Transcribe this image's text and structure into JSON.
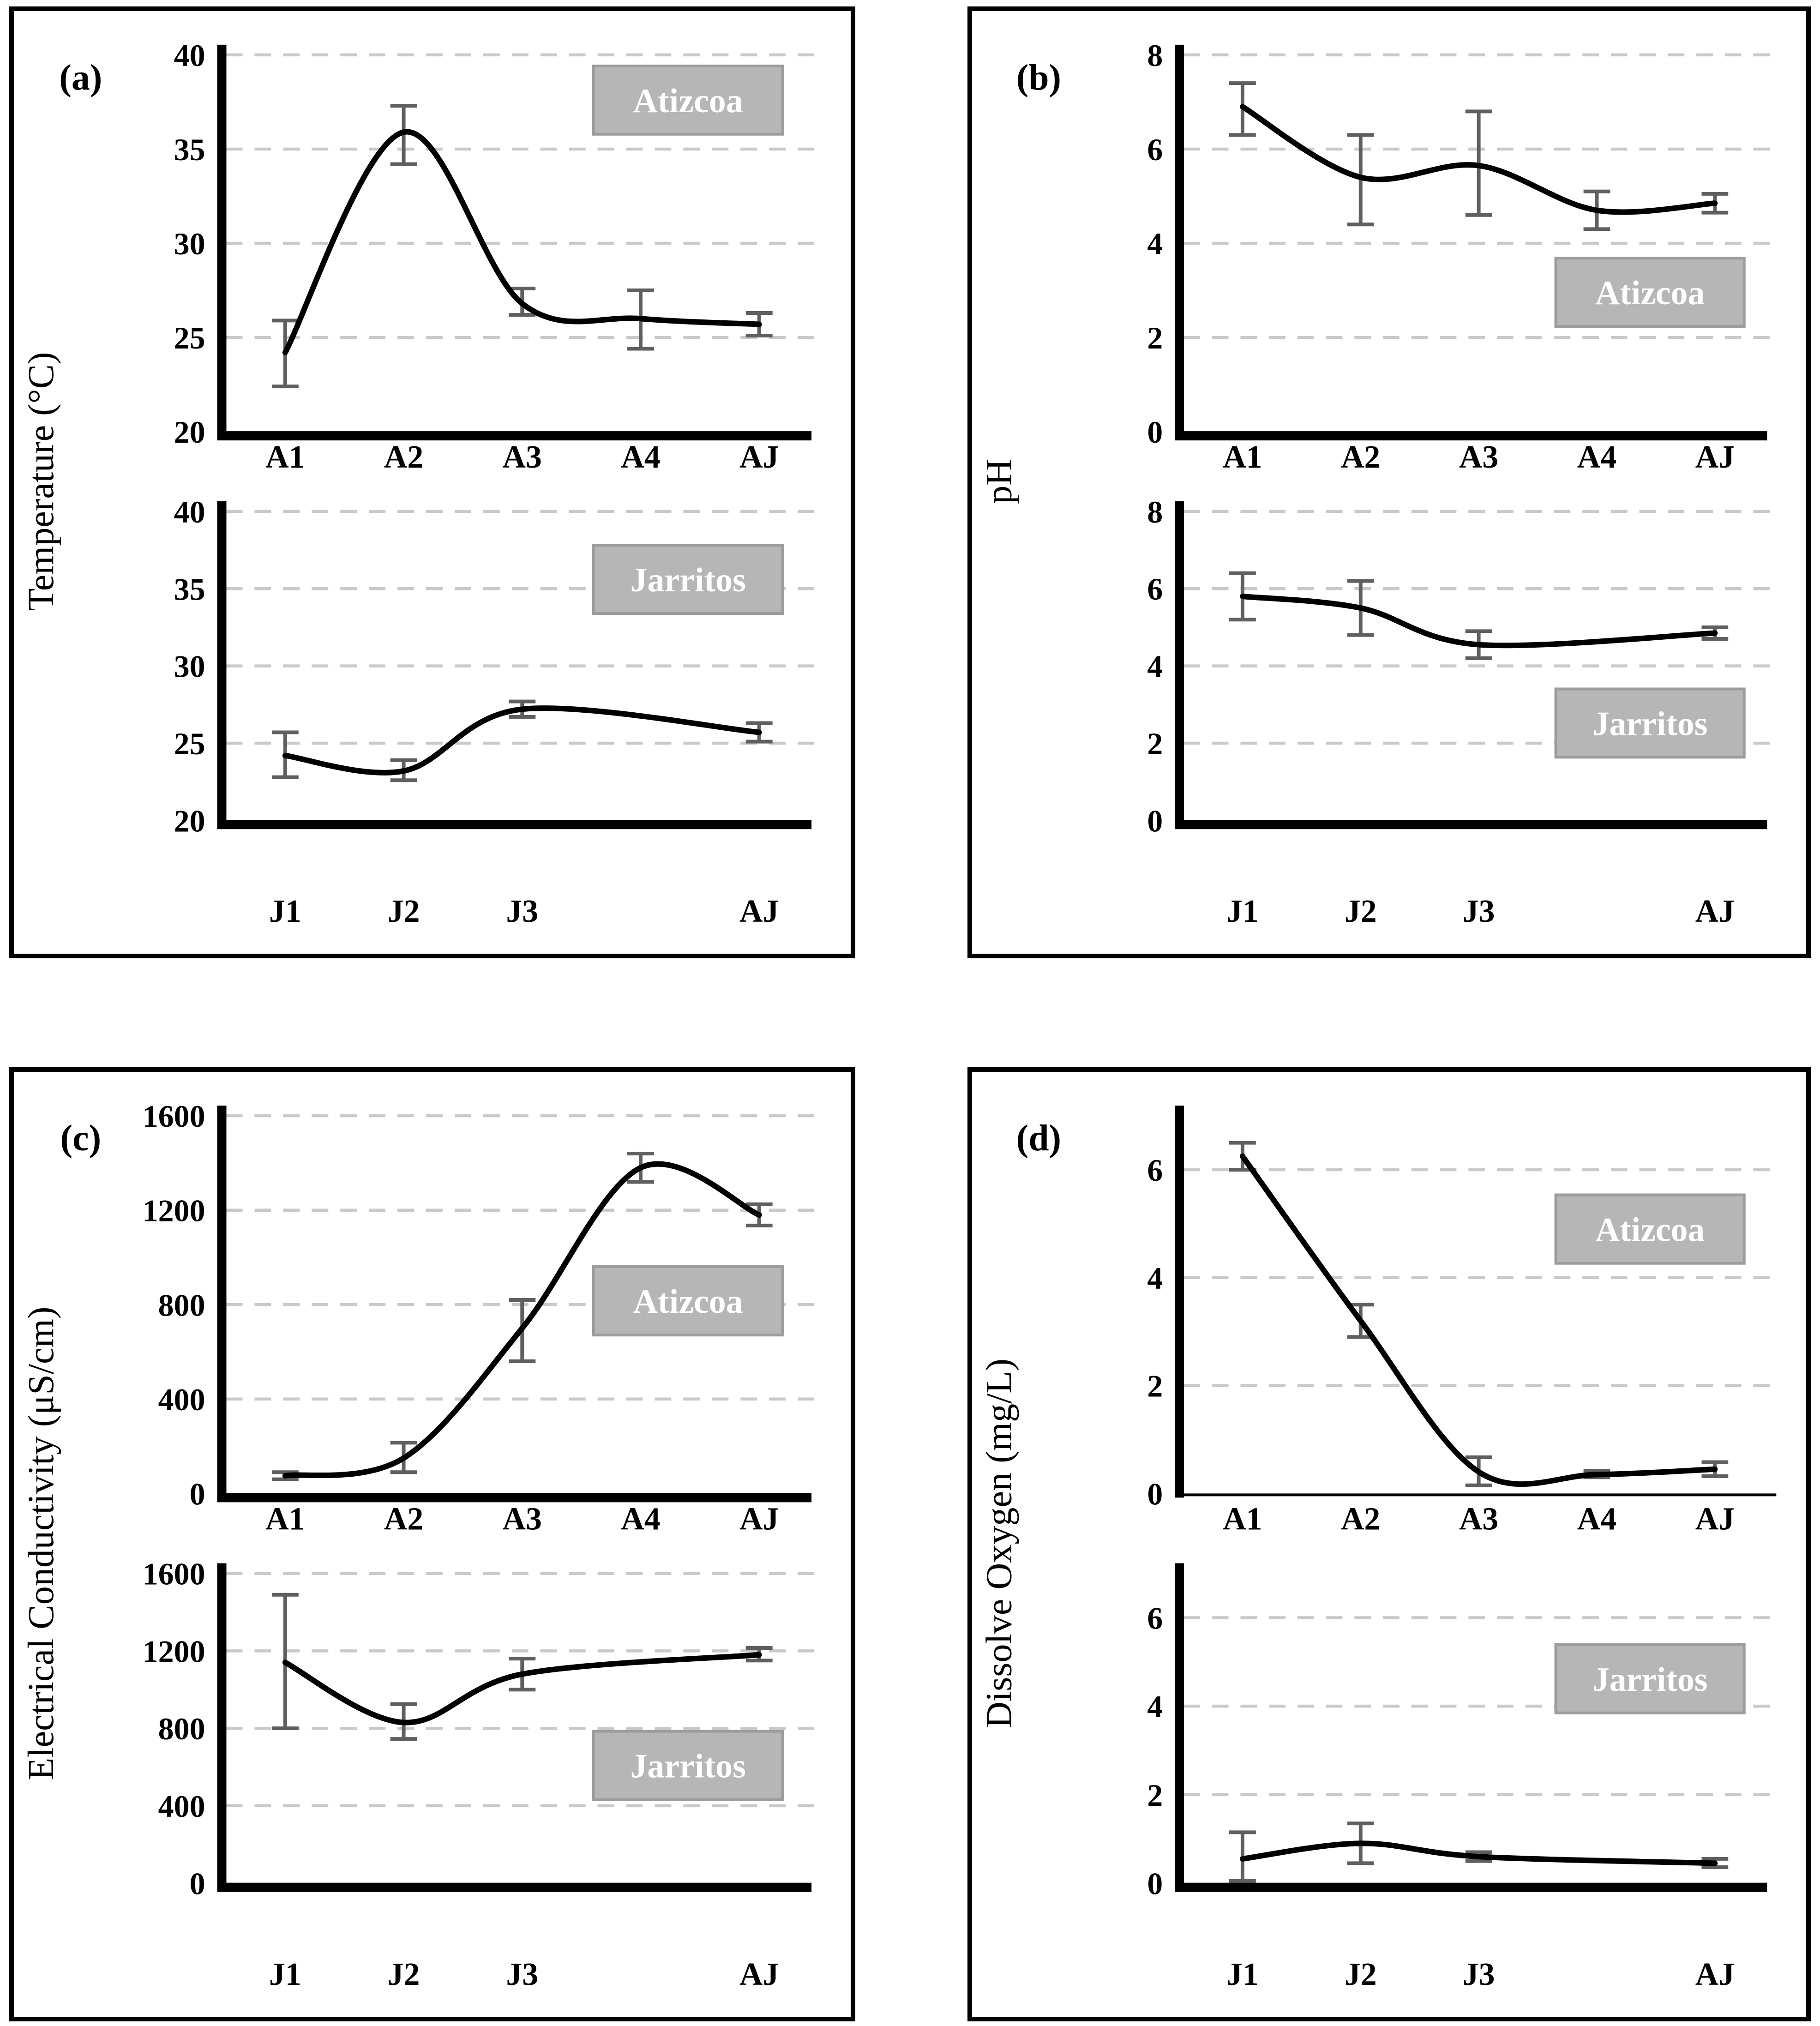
{
  "figure": {
    "title": "",
    "colors": {
      "line": "#000000",
      "error_bar": "#5f5f5f",
      "gridline": "#c9c9c9",
      "label_box_fill": "#b6b6b6",
      "label_box_border": "#9c9c9c",
      "label_box_text": "#ffffff",
      "axis": "#000000",
      "text": "#000000",
      "panel_border": "#000000",
      "background": "#ffffff"
    },
    "panels": [
      {
        "id": "a",
        "letter": "(a)",
        "y_title": "Temperature (°C)",
        "charts": [
          0,
          1
        ]
      },
      {
        "id": "b",
        "letter": "(b)",
        "y_title": "pH",
        "charts": [
          2,
          3
        ]
      },
      {
        "id": "c",
        "letter": "(c)",
        "y_title": "Electrical Conductivity (μS/cm)",
        "charts": [
          4,
          5
        ]
      },
      {
        "id": "d",
        "letter": "(d)",
        "y_title": "Dissolve Oxygen (mg/L)",
        "charts": [
          6,
          7
        ]
      }
    ]
  },
  "chart_data": [
    {
      "type": "line",
      "panel": "(a)",
      "series": "Atizcoa",
      "title": "",
      "xlabel": "",
      "ylabel": "Temperature (°C)",
      "categories": [
        "A1",
        "A2",
        "A3",
        "A4",
        "AJ"
      ],
      "x_slots": [
        1,
        2,
        3,
        4,
        5
      ],
      "values": [
        24.2,
        35.9,
        26.8,
        26.0,
        25.7
      ],
      "err_low": [
        22.4,
        34.2,
        26.2,
        24.4,
        25.1
      ],
      "err_high": [
        25.9,
        37.3,
        27.6,
        27.5,
        26.3
      ],
      "ylim": [
        20,
        40
      ],
      "yticks": [
        20,
        25,
        30,
        35,
        40
      ],
      "gridlines": [
        25,
        30,
        35,
        40
      ],
      "grid": "horizontal-dashed",
      "legend_position": "none",
      "label_box": {
        "text": "Atizcoa",
        "fx": 0.78,
        "fy": 0.12
      },
      "thin_x_axis": false
    },
    {
      "type": "line",
      "panel": "(a)",
      "series": "Jarritos",
      "title": "",
      "xlabel": "",
      "ylabel": "Temperature (°C)",
      "categories": [
        "J1",
        "J2",
        "J3",
        "AJ"
      ],
      "x_slots": [
        1,
        2,
        3,
        5
      ],
      "values": [
        24.2,
        23.2,
        27.2,
        25.7
      ],
      "err_low": [
        22.8,
        22.6,
        26.7,
        25.1
      ],
      "err_high": [
        25.7,
        23.9,
        27.7,
        26.3
      ],
      "ylim": [
        20,
        40
      ],
      "yticks": [
        20,
        25,
        30,
        35,
        40
      ],
      "gridlines": [
        25,
        30,
        35,
        40
      ],
      "grid": "horizontal-dashed",
      "legend_position": "none",
      "label_box": {
        "text": "Jarritos",
        "fx": 0.78,
        "fy": 0.22
      },
      "thin_x_axis": false
    },
    {
      "type": "line",
      "panel": "(b)",
      "series": "Atizcoa",
      "title": "",
      "xlabel": "",
      "ylabel": "pH",
      "categories": [
        "A1",
        "A2",
        "A3",
        "A4",
        "AJ"
      ],
      "x_slots": [
        1,
        2,
        3,
        4,
        5
      ],
      "values": [
        6.9,
        5.4,
        5.65,
        4.7,
        4.85
      ],
      "err_low": [
        6.3,
        4.4,
        4.6,
        4.3,
        4.65
      ],
      "err_high": [
        7.4,
        6.3,
        6.8,
        5.1,
        5.05
      ],
      "ylim": [
        0,
        8
      ],
      "yticks": [
        0,
        2,
        4,
        6,
        8
      ],
      "gridlines": [
        2,
        4,
        6,
        8
      ],
      "grid": "horizontal-dashed",
      "legend_position": "none",
      "label_box": {
        "text": "Atizcoa",
        "fx": 0.79,
        "fy": 0.63
      },
      "thin_x_axis": false
    },
    {
      "type": "line",
      "panel": "(b)",
      "series": "Jarritos",
      "title": "",
      "xlabel": "",
      "ylabel": "pH",
      "categories": [
        "J1",
        "J2",
        "J3",
        "AJ"
      ],
      "x_slots": [
        1,
        2,
        3,
        5
      ],
      "values": [
        5.8,
        5.5,
        4.55,
        4.85
      ],
      "err_low": [
        5.2,
        4.8,
        4.2,
        4.7
      ],
      "err_high": [
        6.4,
        6.2,
        4.9,
        5.0
      ],
      "ylim": [
        0,
        8
      ],
      "yticks": [
        0,
        2,
        4,
        6,
        8
      ],
      "gridlines": [
        2,
        4,
        6,
        8
      ],
      "grid": "horizontal-dashed",
      "legend_position": "none",
      "label_box": {
        "text": "Jarritos",
        "fx": 0.79,
        "fy": 0.685
      },
      "thin_x_axis": false
    },
    {
      "type": "line",
      "panel": "(c)",
      "series": "Atizcoa",
      "title": "",
      "xlabel": "",
      "ylabel": "Electrical Conductivity (μS/cm)",
      "categories": [
        "A1",
        "A2",
        "A3",
        "A4",
        "AJ"
      ],
      "x_slots": [
        1,
        2,
        3,
        4,
        5
      ],
      "values": [
        75,
        150,
        700,
        1380,
        1180
      ],
      "err_low": [
        60,
        90,
        560,
        1320,
        1135
      ],
      "err_high": [
        90,
        215,
        820,
        1440,
        1225
      ],
      "ylim": [
        0,
        1600
      ],
      "yticks": [
        0,
        400,
        800,
        1200,
        1600
      ],
      "gridlines": [
        400,
        800,
        1200,
        1600
      ],
      "grid": "horizontal-dashed",
      "legend_position": "none",
      "label_box": {
        "text": "Atizcoa",
        "fx": 0.78,
        "fy": 0.49
      },
      "thin_x_axis": false
    },
    {
      "type": "line",
      "panel": "(c)",
      "series": "Jarritos",
      "title": "",
      "xlabel": "",
      "ylabel": "Electrical Conductivity (μS/cm)",
      "categories": [
        "J1",
        "J2",
        "J3",
        "AJ"
      ],
      "x_slots": [
        1,
        2,
        3,
        5
      ],
      "values": [
        1140,
        830,
        1080,
        1180
      ],
      "err_low": [
        800,
        745,
        1000,
        1150
      ],
      "err_high": [
        1490,
        925,
        1160,
        1215
      ],
      "ylim": [
        0,
        1600
      ],
      "yticks": [
        0,
        400,
        800,
        1200,
        1600
      ],
      "gridlines": [
        400,
        800,
        1200,
        1600
      ],
      "grid": "horizontal-dashed",
      "legend_position": "none",
      "label_box": {
        "text": "Jarritos",
        "fx": 0.78,
        "fy": 0.62
      },
      "thin_x_axis": false
    },
    {
      "type": "line",
      "panel": "(d)",
      "series": "Atizcoa",
      "title": "",
      "xlabel": "",
      "ylabel": "Dissolve Oxygen (mg/L)",
      "categories": [
        "A1",
        "A2",
        "A3",
        "A4",
        "AJ"
      ],
      "x_slots": [
        1,
        2,
        3,
        4,
        5
      ],
      "values": [
        6.25,
        3.2,
        0.4,
        0.35,
        0.45
      ],
      "err_low": [
        6.0,
        2.9,
        0.15,
        0.3,
        0.32
      ],
      "err_high": [
        6.5,
        3.5,
        0.67,
        0.42,
        0.58
      ],
      "ylim": [
        0,
        7
      ],
      "yticks": [
        0,
        2,
        4,
        6
      ],
      "gridlines": [
        2,
        4,
        6
      ],
      "grid": "horizontal-dashed",
      "legend_position": "none",
      "label_box": {
        "text": "Atizcoa",
        "fx": 0.79,
        "fy": 0.3
      },
      "thin_x_axis": true
    },
    {
      "type": "line",
      "panel": "(d)",
      "series": "Jarritos",
      "title": "",
      "xlabel": "",
      "ylabel": "Dissolve Oxygen (mg/L)",
      "categories": [
        "J1",
        "J2",
        "J3",
        "AJ"
      ],
      "x_slots": [
        1,
        2,
        3,
        5
      ],
      "values": [
        0.55,
        0.9,
        0.6,
        0.45
      ],
      "err_low": [
        0.05,
        0.45,
        0.5,
        0.36
      ],
      "err_high": [
        1.15,
        1.35,
        0.7,
        0.55
      ],
      "ylim": [
        0,
        7
      ],
      "yticks": [
        0,
        2,
        4,
        6
      ],
      "gridlines": [
        2,
        4,
        6
      ],
      "grid": "horizontal-dashed",
      "legend_position": "none",
      "label_box": {
        "text": "Jarritos",
        "fx": 0.79,
        "fy": 0.34
      },
      "thin_x_axis": false
    }
  ]
}
